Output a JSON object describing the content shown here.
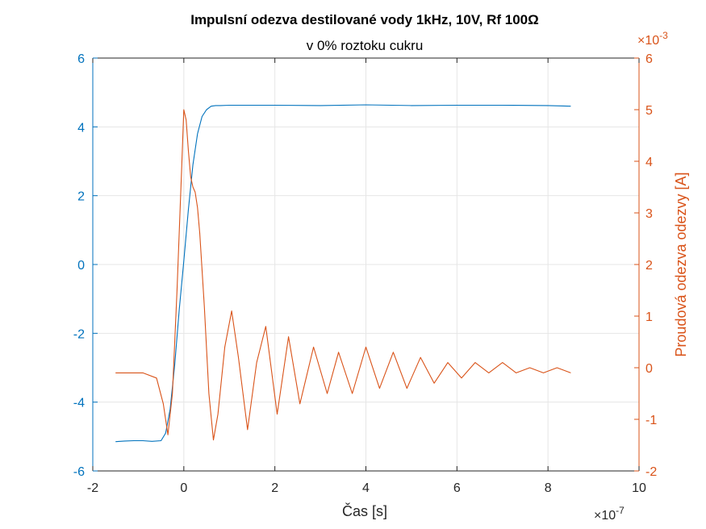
{
  "chart_data": {
    "type": "line",
    "title": "Impulsní odezva destilované vody 1kHz, 10V, Rf 100Ω",
    "subtitle": "v 0% roztoku cukru",
    "xlabel": "Čas [s]",
    "ylabel_left": "",
    "ylabel_right": "Proudová odezva odezvy [A]",
    "x_exponent": "×10",
    "x_exponent_power": "-7",
    "y_right_exponent": "×10",
    "y_right_exponent_power": "-3",
    "xlim": [
      -2e-07,
      1e-06
    ],
    "ylim_left": [
      -6,
      6
    ],
    "ylim_right": [
      -0.002,
      0.006
    ],
    "x_ticks": [
      -2e-07,
      0,
      2e-07,
      4e-07,
      6e-07,
      8e-07,
      1e-06
    ],
    "x_tick_labels": [
      "-2",
      "0",
      "2",
      "4",
      "6",
      "8",
      "10"
    ],
    "y_left_ticks": [
      -6,
      -4,
      -2,
      0,
      2,
      4,
      6
    ],
    "y_left_tick_labels": [
      "-6",
      "-4",
      "-2",
      "0",
      "2",
      "4",
      "6"
    ],
    "y_right_ticks": [
      -0.002,
      -0.001,
      0,
      0.001,
      0.002,
      0.003,
      0.004,
      0.005,
      0.006
    ],
    "y_right_tick_labels": [
      "-2",
      "-1",
      "0",
      "1",
      "2",
      "3",
      "4",
      "5",
      "6"
    ],
    "grid": true,
    "colors": {
      "left": "#0072BD",
      "right": "#D95319",
      "grid": "#e6e6e6",
      "axis": "#262626"
    },
    "series": [
      {
        "axis": "left",
        "x": [
          -1.5e-07,
          -1.3e-07,
          -1.1e-07,
          -9e-08,
          -7e-08,
          -5e-08,
          -4e-08,
          -3e-08,
          -2e-08,
          -1e-08,
          0,
          1e-08,
          2e-08,
          3e-08,
          4e-08,
          5e-08,
          6e-08,
          7e-08,
          8e-08,
          1e-07,
          2e-07,
          3e-07,
          4e-07,
          5e-07,
          6e-07,
          7e-07,
          8e-07,
          8.5e-07
        ],
        "y": [
          -5.15,
          -5.13,
          -5.12,
          -5.12,
          -5.14,
          -5.12,
          -4.9,
          -4.2,
          -2.9,
          -1.3,
          0.1,
          1.6,
          2.9,
          3.8,
          4.3,
          4.5,
          4.6,
          4.62,
          4.62,
          4.63,
          4.63,
          4.62,
          4.64,
          4.62,
          4.63,
          4.63,
          4.62,
          4.6
        ]
      },
      {
        "axis": "right",
        "x": [
          -1.5e-07,
          -1.2e-07,
          -9e-08,
          -6e-08,
          -4.5e-08,
          -3.5e-08,
          -2.5e-08,
          -1.5e-08,
          -5e-09,
          0,
          5e-09,
          1e-08,
          1.5e-08,
          2e-08,
          2.5e-08,
          3e-08,
          3.5e-08,
          4.5e-08,
          5.5e-08,
          6.5e-08,
          7.5e-08,
          9e-08,
          1.05e-07,
          1.2e-07,
          1.4e-07,
          1.6e-07,
          1.8e-07,
          2.05e-07,
          2.3e-07,
          2.55e-07,
          2.85e-07,
          3.15e-07,
          3.4e-07,
          3.7e-07,
          4e-07,
          4.3e-07,
          4.6e-07,
          4.9e-07,
          5.2e-07,
          5.5e-07,
          5.8e-07,
          6.1e-07,
          6.4e-07,
          6.7e-07,
          7e-07,
          7.3e-07,
          7.6e-07,
          7.9e-07,
          8.2e-07,
          8.5e-07
        ],
        "y": [
          -0.0001,
          -0.0001,
          -0.0001,
          -0.0002,
          -0.0007,
          -0.0013,
          -0.0005,
          0.0015,
          0.0038,
          0.005,
          0.0048,
          0.0042,
          0.0037,
          0.0035,
          0.0034,
          0.0031,
          0.0026,
          0.0012,
          -0.0005,
          -0.0014,
          -0.0009,
          0.0004,
          0.0011,
          0.0002,
          -0.0012,
          0.0001,
          0.0008,
          -0.0009,
          0.0006,
          -0.0007,
          0.0004,
          -0.0005,
          0.0003,
          -0.0005,
          0.0004,
          -0.0004,
          0.0003,
          -0.0004,
          0.0002,
          -0.0003,
          0.0001,
          -0.0002,
          0.0001,
          -0.0001,
          0.0001,
          -0.0001,
          0.0,
          -0.0001,
          0.0,
          -0.0001
        ]
      }
    ]
  }
}
